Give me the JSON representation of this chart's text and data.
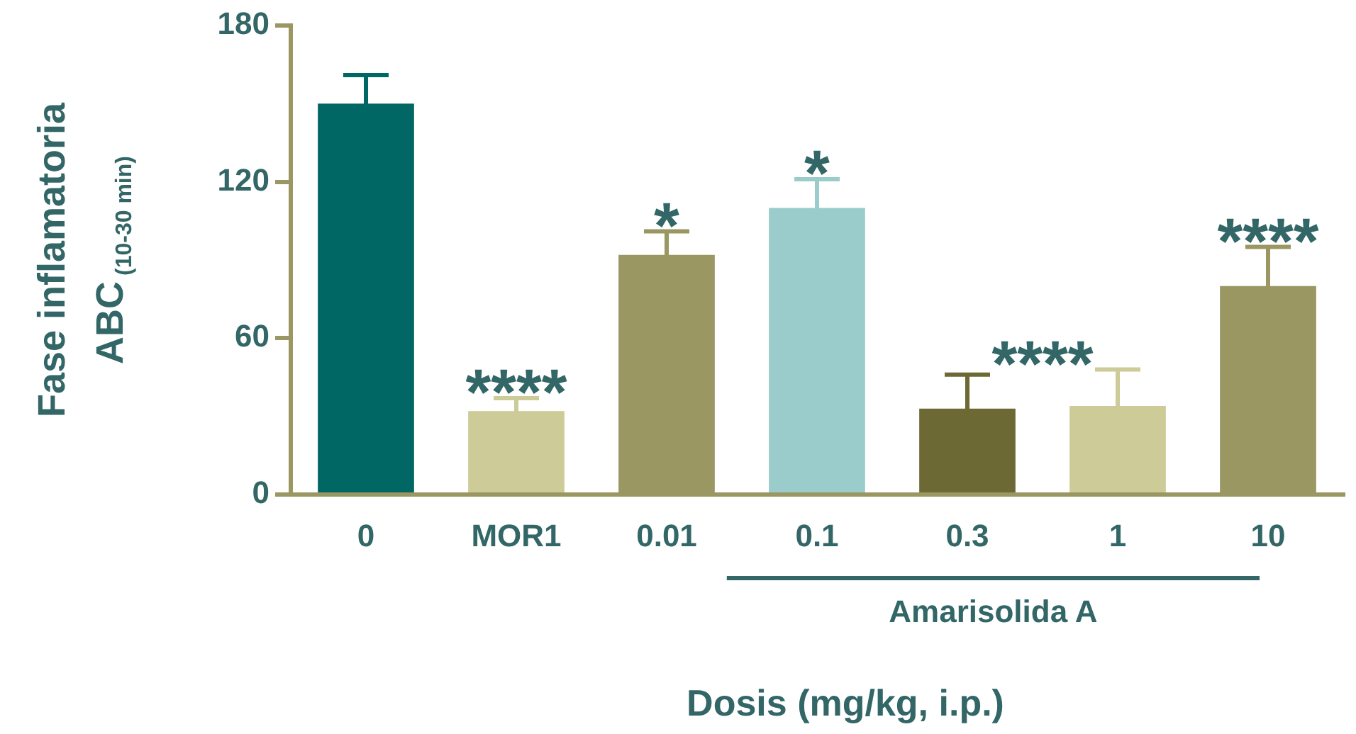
{
  "chart_data": {
    "type": "bar",
    "categories": [
      "0",
      "MOR1",
      "0.01",
      "0.1",
      "0.3",
      "1",
      "10"
    ],
    "values": [
      150,
      32,
      92,
      110,
      33,
      34,
      80
    ],
    "errors": [
      11,
      5,
      9,
      11,
      13,
      14,
      15
    ],
    "colors": [
      "#006764",
      "#cdcb97",
      "#9a9762",
      "#9bcccc",
      "#6c6935",
      "#cdcb97",
      "#9a9762"
    ],
    "ylim": [
      0,
      180
    ],
    "yticks": [
      0,
      60,
      120,
      180
    ],
    "ylabel": "Fase inflamatoria ABC$_{(10-30 min)}$",
    "xlabel": "Dosis (mg/kg, i.p.)",
    "grid": false,
    "legend": false,
    "annotations": [
      "****",
      "*",
      "*",
      "****",
      "****",
      "Amarisolida A"
    ]
  }
}
